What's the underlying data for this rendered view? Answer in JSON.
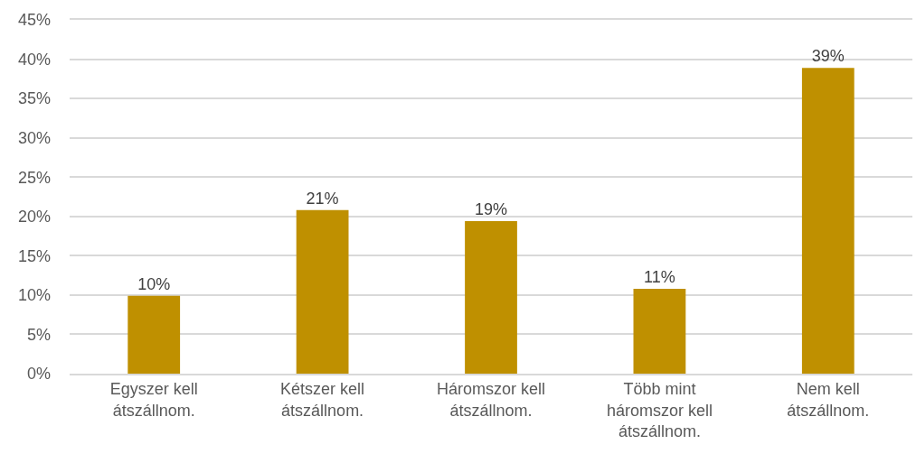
{
  "chart_data": {
    "type": "bar",
    "categories": [
      "Egyszer kell átszállnom.",
      "Kétszer kell átszállnom.",
      "Háromszor kell átszállnom.",
      "Több mint háromszor kell átszállnom.",
      "Nem kell átszállnom."
    ],
    "values": [
      9.9,
      20.8,
      19.4,
      10.8,
      38.9
    ],
    "value_labels": [
      "10%",
      "21%",
      "19%",
      "11%",
      "39%"
    ],
    "color": "#bf9000",
    "ylim": [
      0,
      45
    ],
    "yticks": [
      {
        "value": 0,
        "label": "0%"
      },
      {
        "value": 5,
        "label": "5%"
      },
      {
        "value": 10,
        "label": "10%"
      },
      {
        "value": 15,
        "label": "15%"
      },
      {
        "value": 20,
        "label": "20%"
      },
      {
        "value": 25,
        "label": "25%"
      },
      {
        "value": 30,
        "label": "30%"
      },
      {
        "value": 35,
        "label": "35%"
      },
      {
        "value": 40,
        "label": "40%"
      },
      {
        "value": 45,
        "label": "45%"
      }
    ],
    "grid": "y",
    "legend": false
  }
}
